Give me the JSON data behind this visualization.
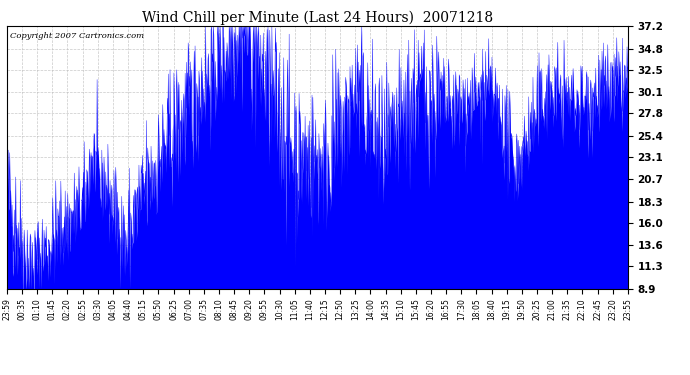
{
  "title": "Wind Chill per Minute (Last 24 Hours)  20071218",
  "copyright_text": "Copyright 2007 Cartronics.com",
  "line_color": "#0000FF",
  "background_color": "#FFFFFF",
  "grid_color": "#BBBBBB",
  "y_ticks": [
    8.9,
    11.3,
    13.6,
    16.0,
    18.3,
    20.7,
    23.1,
    25.4,
    27.8,
    30.1,
    32.5,
    34.8,
    37.2
  ],
  "ylim": [
    8.9,
    37.2
  ],
  "x_tick_labels": [
    "23:59",
    "00:35",
    "01:10",
    "01:45",
    "02:20",
    "02:55",
    "03:30",
    "04:05",
    "04:40",
    "05:15",
    "05:50",
    "06:25",
    "07:00",
    "07:35",
    "08:10",
    "08:45",
    "09:20",
    "09:55",
    "10:30",
    "11:05",
    "11:40",
    "12:15",
    "12:50",
    "13:25",
    "14:00",
    "14:35",
    "15:10",
    "15:45",
    "16:20",
    "16:55",
    "17:30",
    "18:05",
    "18:40",
    "19:15",
    "19:50",
    "20:25",
    "21:00",
    "21:35",
    "22:10",
    "22:45",
    "23:20",
    "23:55"
  ],
  "num_points": 1440,
  "seed": 42
}
